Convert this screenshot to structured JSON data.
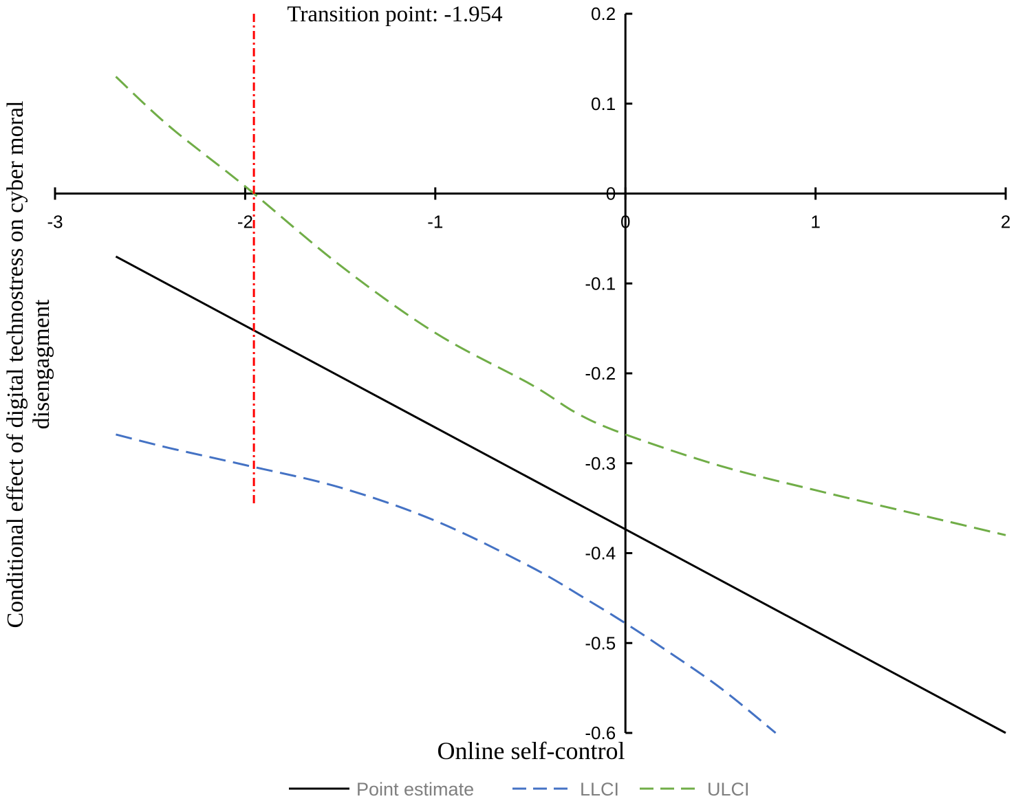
{
  "chart_data": {
    "type": "line",
    "title": "",
    "xlabel": "Online self-control",
    "ylabel": "Conditional effect of digital technostress on cyber moral disengagment",
    "xlim": [
      -3,
      2
    ],
    "ylim": [
      -0.6,
      0.2
    ],
    "x_ticks": [
      "-3",
      "-2",
      "-1",
      "0",
      "1",
      "2"
    ],
    "y_ticks": [
      "0.2",
      "0.1",
      "0",
      "-0.1",
      "-0.2",
      "-0.3",
      "-0.4",
      "-0.5",
      "-0.6"
    ],
    "annotation": {
      "text": "Transition point: -1.954",
      "x": -1.954,
      "color": "#ff0000",
      "y_range": [
        -0.345,
        0.2
      ]
    },
    "legend_position": "bottom",
    "series": [
      {
        "name": "Point estimate",
        "color": "#000000",
        "style": "solid",
        "x": [
          -2.68,
          2.0
        ],
        "y": [
          -0.07,
          -0.6
        ]
      },
      {
        "name": "LLCI",
        "color": "#4472c4",
        "style": "dashed",
        "x": [
          -2.68,
          -2.4,
          -2.0,
          -1.5,
          -1.0,
          -0.5,
          -0.2,
          0.0,
          0.2,
          0.5,
          0.79
        ],
        "y": [
          -0.268,
          -0.283,
          -0.302,
          -0.327,
          -0.364,
          -0.415,
          -0.452,
          -0.478,
          -0.506,
          -0.55,
          -0.6
        ]
      },
      {
        "name": "ULCI",
        "color": "#70ad47",
        "style": "dashed",
        "x": [
          -2.68,
          -2.4,
          -2.0,
          -1.5,
          -1.0,
          -0.5,
          -0.25,
          0.0,
          0.5,
          1.0,
          1.5,
          2.0
        ],
        "y": [
          0.13,
          0.075,
          0.008,
          -0.08,
          -0.155,
          -0.212,
          -0.245,
          -0.268,
          -0.303,
          -0.33,
          -0.355,
          -0.38
        ]
      }
    ]
  }
}
